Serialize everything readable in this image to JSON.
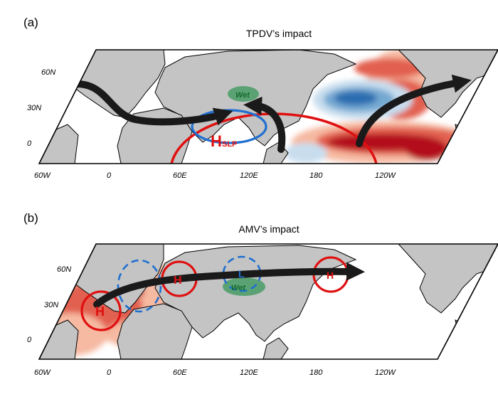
{
  "panels": [
    {
      "id": "a",
      "label": "(a)",
      "title": "TPDV’s impact",
      "lat_labels": [
        "60N",
        "30N",
        "0"
      ],
      "lon_labels": [
        "60W",
        "0",
        "60E",
        "120E",
        "180",
        "120W"
      ],
      "annotations": {
        "high": "H",
        "high_sub": "SLP",
        "wet": "Wet"
      }
    },
    {
      "id": "b",
      "label": "(b)",
      "title": "AMV’s impact",
      "lat_labels": [
        "60N",
        "30N",
        "0"
      ],
      "lon_labels": [
        "60W",
        "0",
        "60E",
        "120E",
        "180",
        "120W"
      ],
      "annotations": {
        "high1": "H",
        "high2": "H",
        "low": "L",
        "wet": "Wet",
        "high3": "H"
      }
    }
  ],
  "colors": {
    "land": "#c4c4c4",
    "warm_dark": "#b3111e",
    "warm_mid": "#e2604f",
    "warm_light": "#f6b9a1",
    "cool_dark": "#2a6db0",
    "cool_mid": "#74a9d2",
    "cool_light": "#c7ddee",
    "arrow": "#1a1a1a",
    "high_circle": "#e01010",
    "low_circle": "#1f6fd0",
    "wet_fill": "#4f9e6a"
  }
}
